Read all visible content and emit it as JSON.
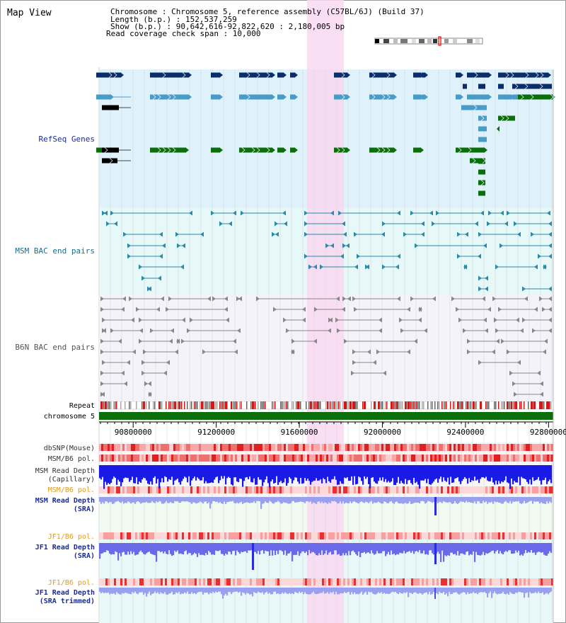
{
  "title": "Map View",
  "info": {
    "line1": "Chromosome    : Chromosome 5, reference assembly (C57BL/6J) (Build 37)",
    "line2": "Length (b.p.) : 152,537,259",
    "line3": "  Show (b.p.) : 90,642,616-92,822,620 : 2,180,005 bp",
    "line4": "Read coverage check span : 10,000"
  },
  "tracks": {
    "refseq": "RefSeq Genes",
    "msm_bac": "MSM BAC end pairs",
    "b6n_bac": "B6N BAC end pairs",
    "repeat": "Repeat",
    "chromosome": "chromosome 5",
    "dbsnp": "dbSNP(Mouse)",
    "msm_b6_pol": "MSM/B6 pol.",
    "msm_read_depth_1": "MSM Read Depth",
    "msm_read_depth_1b": "(Capillary)",
    "msm_b6_pol_2": "MSM/B6 pol.",
    "msm_read_depth_2": "MSM Read Depth",
    "msm_read_depth_2b": "(SRA)",
    "jf1_b6_pol": "JF1/B6 pol.",
    "jf1_read_depth": "JF1 Read Depth",
    "jf1_read_depth_b": "(SRA)",
    "jf1_b6_pol_2": "JF1/B6 pol.",
    "jf1_read_depth_2": "JF1 Read Depth",
    "jf1_read_depth_2b": "(SRA trimmed)"
  },
  "axis": {
    "ticks": [
      "90800000",
      "91200000",
      "91600000",
      "92000000",
      "92400000",
      "92800000"
    ],
    "tick_values": [
      90800000,
      91200000,
      91600000,
      92000000,
      92400000,
      92800000
    ],
    "range": [
      90642616,
      92822620
    ]
  },
  "colors": {
    "refseq_bg": "#dff2fb",
    "msm_bg": "#e6f8f8",
    "b6n_bg": "#f3f3f9",
    "highlight": "#f9d8f1",
    "gene_dark": "#0a2e6b",
    "gene_mid": "#4a9cc8",
    "gene_green": "#0a6e0a",
    "msm_pair": "#2b8aa8",
    "b6n_pair": "#888888",
    "label_blue": "#1a2b9a",
    "label_teal": "#1a6e8a",
    "label_orange": "#e69a1a",
    "chrom_green": "#0a6e0a"
  }
}
